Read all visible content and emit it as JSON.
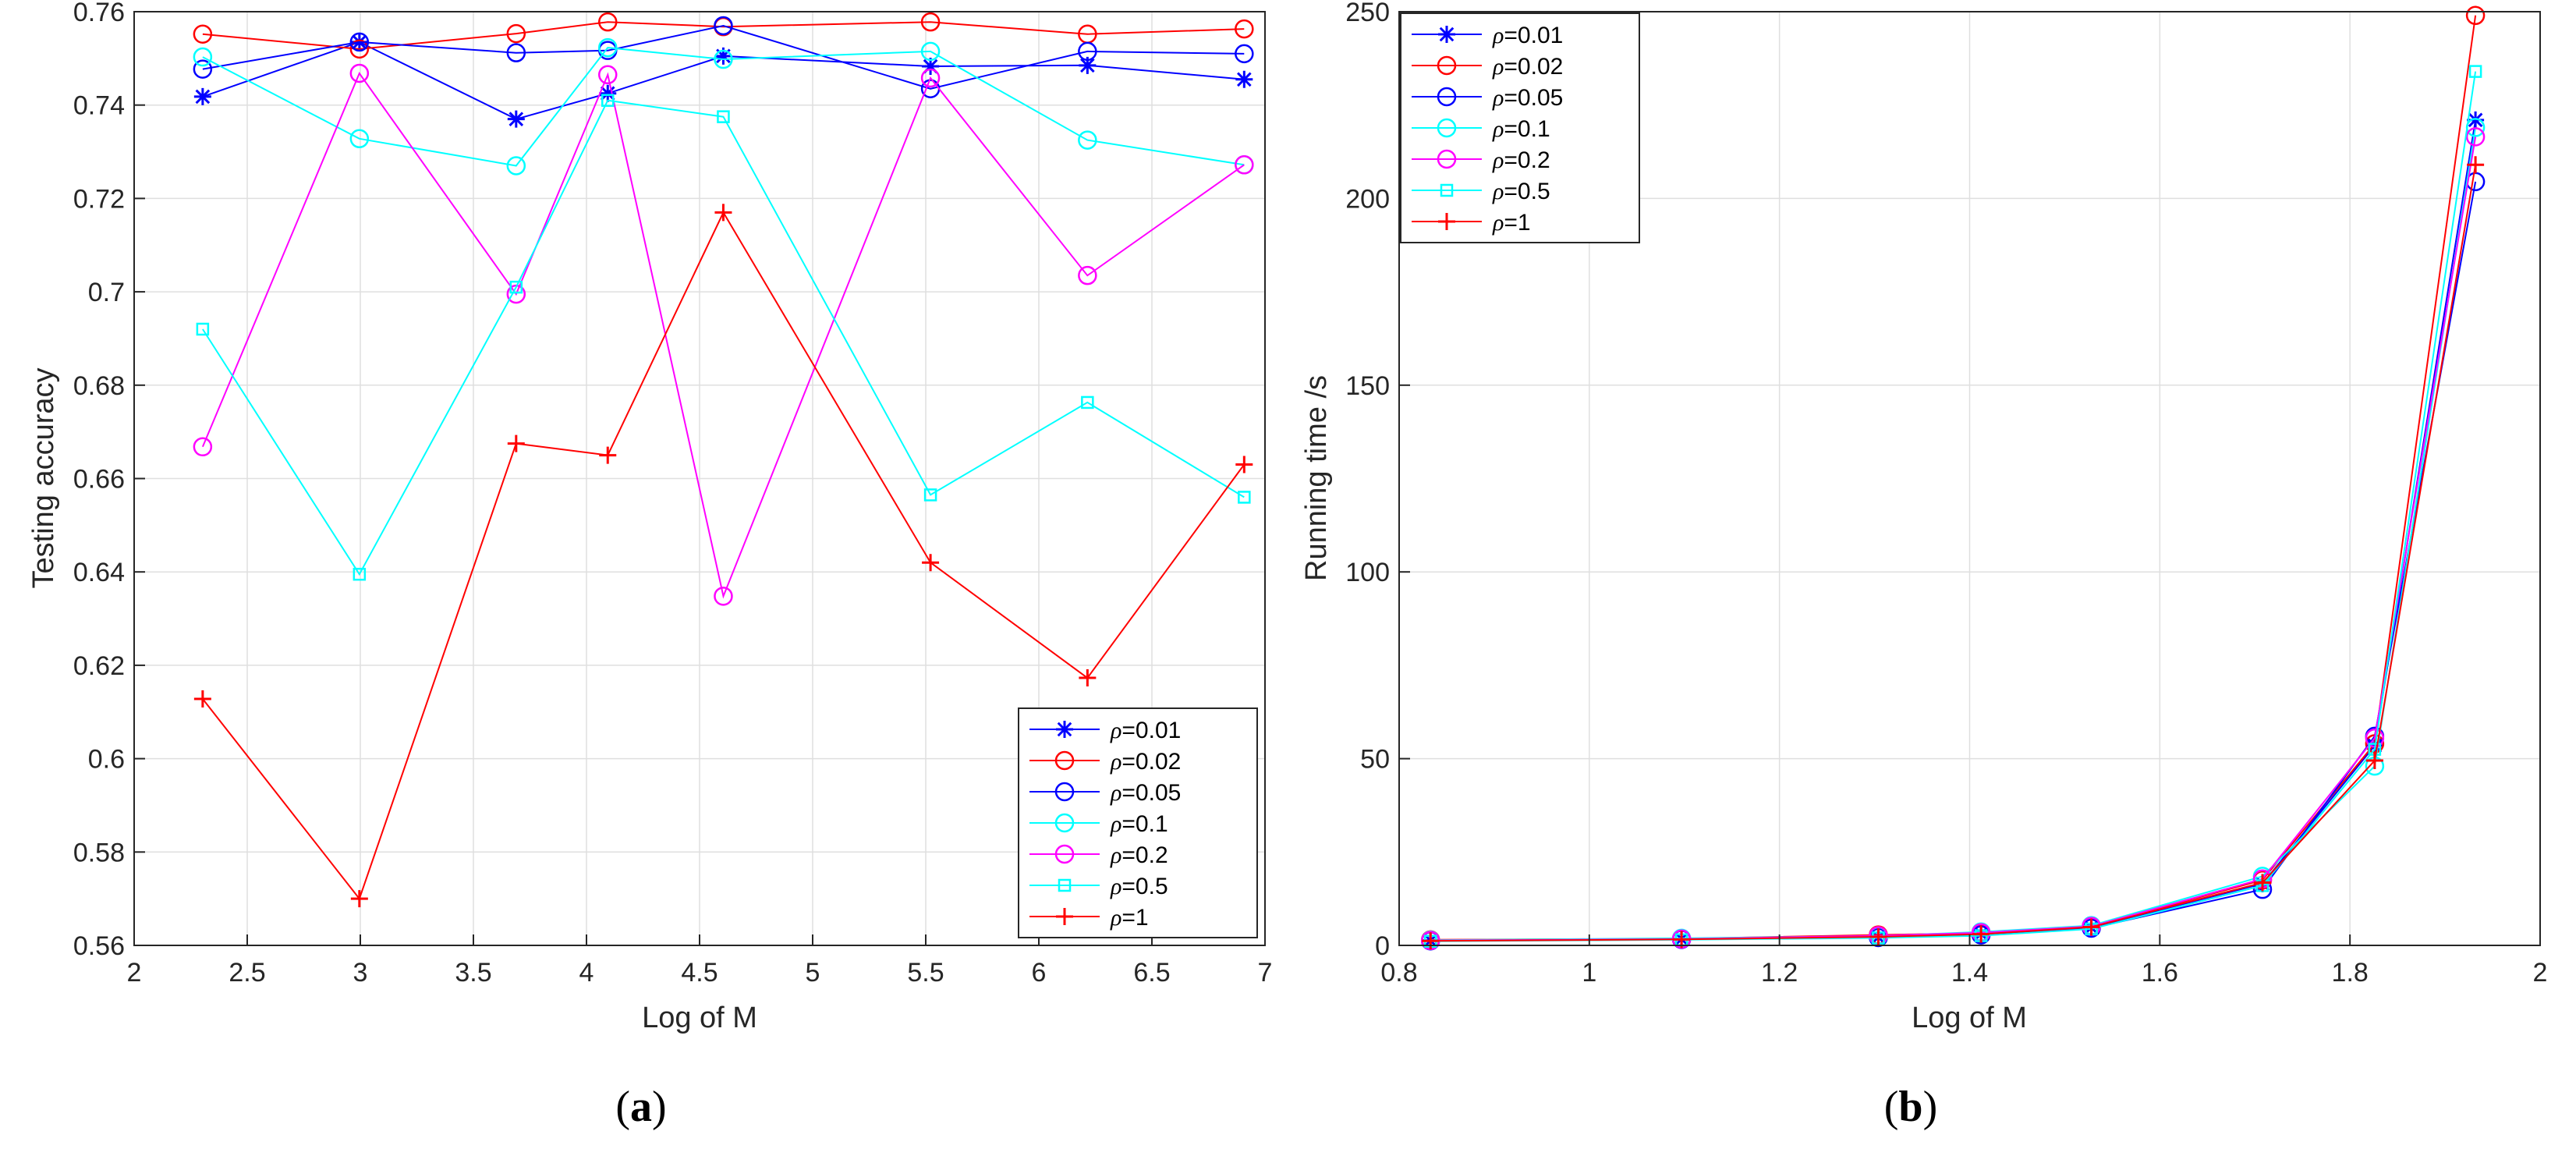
{
  "chart_data": [
    {
      "type": "line",
      "panel_label": "(a)",
      "panel_label_parts": {
        "open": "(",
        "letter": "a",
        "close": ")"
      },
      "xlabel": "Log of M",
      "ylabel": "Testing accuracy",
      "xlim": [
        2,
        7
      ],
      "ylim": [
        0.56,
        0.76
      ],
      "xticks": [
        2,
        2.5,
        3,
        3.5,
        4,
        4.5,
        5,
        5.5,
        6,
        6.5,
        7
      ],
      "xtick_labels": [
        "2",
        "2.5",
        "3",
        "3.5",
        "4",
        "4.5",
        "5",
        "5.5",
        "6",
        "6.5",
        "7"
      ],
      "yticks": [
        0.56,
        0.58,
        0.6,
        0.62,
        0.64,
        0.66,
        0.68,
        0.7,
        0.72,
        0.74,
        0.76
      ],
      "ytick_labels": [
        "0.56",
        "0.58",
        "0.6",
        "0.62",
        "0.64",
        "0.66",
        "0.68",
        "0.7",
        "0.72",
        "0.74",
        "0.76"
      ],
      "grid": true,
      "legend_position": "bottom-right",
      "x": [
        2.303,
        2.996,
        3.689,
        4.094,
        4.605,
        5.521,
        6.215,
        6.908
      ],
      "series": [
        {
          "name": "ρ=0.01",
          "rho_label": "ρ",
          "value_label": "=0.01",
          "color": "#0000ff",
          "marker": "asterisk",
          "values": [
            0.7418,
            0.7535,
            0.737,
            0.7425,
            0.7505,
            0.7483,
            0.7485,
            0.7455
          ]
        },
        {
          "name": "ρ=0.02",
          "rho_label": "ρ",
          "value_label": "=0.02",
          "color": "#ff0000",
          "marker": "circle",
          "values": [
            0.7552,
            0.752,
            0.7553,
            0.7578,
            0.7568,
            0.7578,
            0.7552,
            0.7563
          ]
        },
        {
          "name": "ρ=0.05",
          "rho_label": "ρ",
          "value_label": "=0.05",
          "color": "#0000ff",
          "marker": "circle",
          "values": [
            0.7477,
            0.7535,
            0.7512,
            0.7517,
            0.757,
            0.7435,
            0.7515,
            0.751
          ]
        },
        {
          "name": "ρ=0.1",
          "rho_label": "ρ",
          "value_label": "=0.1",
          "color": "#00ffff",
          "marker": "circle",
          "values": [
            0.7503,
            0.7328,
            0.727,
            0.7523,
            0.7498,
            0.7515,
            0.7325,
            0.7272
          ]
        },
        {
          "name": "ρ=0.2",
          "rho_label": "ρ",
          "value_label": "=0.2",
          "color": "#ff00ff",
          "marker": "circle",
          "values": [
            0.6668,
            0.7468,
            0.6995,
            0.7465,
            0.6348,
            0.7458,
            0.7035,
            0.7272
          ]
        },
        {
          "name": "ρ=0.5",
          "rho_label": "ρ",
          "value_label": "=0.5",
          "color": "#00ffff",
          "marker": "square",
          "values": [
            0.692,
            0.6395,
            0.701,
            0.741,
            0.7375,
            0.6565,
            0.6763,
            0.656
          ]
        },
        {
          "name": "ρ=1",
          "rho_label": "ρ",
          "value_label": "=1",
          "color": "#ff0000",
          "marker": "plus",
          "values": [
            0.6128,
            0.57,
            0.6675,
            0.665,
            0.717,
            0.642,
            0.6173,
            0.663
          ]
        }
      ]
    },
    {
      "type": "line",
      "panel_label": "(b)",
      "panel_label_parts": {
        "open": "(",
        "letter": "b",
        "close": ")"
      },
      "xlabel": "Log of M",
      "ylabel": "Running time /s",
      "xlim": [
        0.8,
        2
      ],
      "ylim": [
        0,
        250
      ],
      "xticks": [
        0.8,
        1,
        1.2,
        1.4,
        1.6,
        1.8,
        2
      ],
      "xtick_labels": [
        "0.8",
        "1",
        "1.2",
        "1.4",
        "1.6",
        "1.8",
        "2"
      ],
      "yticks": [
        0,
        50,
        100,
        150,
        200,
        250
      ],
      "ytick_labels": [
        "0",
        "50",
        "100",
        "150",
        "200",
        "250"
      ],
      "grid": true,
      "legend_position": "top-left",
      "x": [
        0.833,
        1.097,
        1.304,
        1.412,
        1.528,
        1.708,
        1.826,
        1.932
      ],
      "series": [
        {
          "name": "ρ=0.01",
          "rho_label": "ρ",
          "value_label": "=0.01",
          "color": "#0000ff",
          "marker": "asterisk",
          "values": [
            1.3,
            1.7,
            2.2,
            3.1,
            4.8,
            16.5,
            53.5,
            221
          ]
        },
        {
          "name": "ρ=0.02",
          "rho_label": "ρ",
          "value_label": "=0.02",
          "color": "#ff0000",
          "marker": "circle",
          "values": [
            1.5,
            1.8,
            2.8,
            3.3,
            5.0,
            17.5,
            54.0,
            249
          ]
        },
        {
          "name": "ρ=0.05",
          "rho_label": "ρ",
          "value_label": "=0.05",
          "color": "#0000ff",
          "marker": "circle",
          "values": [
            1.2,
            1.6,
            2.1,
            2.8,
            4.6,
            15.0,
            56.0,
            204.5
          ]
        },
        {
          "name": "ρ=0.1",
          "rho_label": "ρ",
          "value_label": "=0.1",
          "color": "#00ffff",
          "marker": "circle",
          "values": [
            1.4,
            1.9,
            2.5,
            3.6,
            5.3,
            18.5,
            48.0,
            219
          ]
        },
        {
          "name": "ρ=0.2",
          "rho_label": "ρ",
          "value_label": "=0.2",
          "color": "#ff00ff",
          "marker": "circle",
          "values": [
            1.3,
            1.7,
            2.6,
            3.4,
            5.1,
            17.8,
            55.5,
            216.5
          ]
        },
        {
          "name": "ρ=0.5",
          "rho_label": "ρ",
          "value_label": "=0.5",
          "color": "#00ffff",
          "marker": "square",
          "values": [
            1.1,
            1.5,
            2.0,
            2.6,
            4.4,
            16.0,
            52.5,
            234
          ]
        },
        {
          "name": "ρ=1",
          "rho_label": "ρ",
          "value_label": "=1",
          "color": "#ff0000",
          "marker": "plus",
          "values": [
            1.2,
            1.6,
            2.3,
            3.0,
            4.9,
            16.8,
            49.5,
            209
          ]
        }
      ]
    }
  ]
}
